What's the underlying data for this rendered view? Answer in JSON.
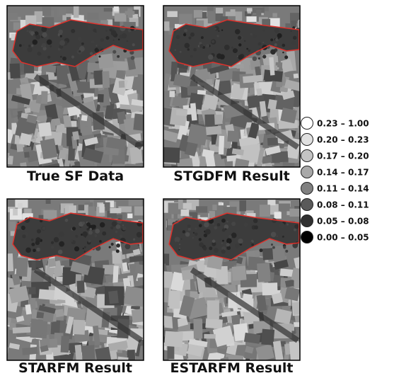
{
  "panels": [
    {
      "title": "True SF Data"
    },
    {
      "title": "STGDFM Result"
    },
    {
      "title": "STARFM Result"
    },
    {
      "title": "ESTARFM Result"
    }
  ],
  "legend": {
    "items": [
      {
        "label": "0.23 – 1.00",
        "color": "#ffffff"
      },
      {
        "label": "0.20 – 0.23",
        "color": "#e0e0e0"
      },
      {
        "label": "0.17 – 0.20",
        "color": "#c4c4c4"
      },
      {
        "label": "0.14 – 0.17",
        "color": "#a8a8a8"
      },
      {
        "label": "0.11 – 0.14",
        "color": "#808080"
      },
      {
        "label": "0.08 – 0.11",
        "color": "#5a5a5a"
      },
      {
        "label": "0.05 – 0.08",
        "color": "#303030"
      },
      {
        "label": "0.00 – 0.05",
        "color": "#000000"
      }
    ]
  }
}
